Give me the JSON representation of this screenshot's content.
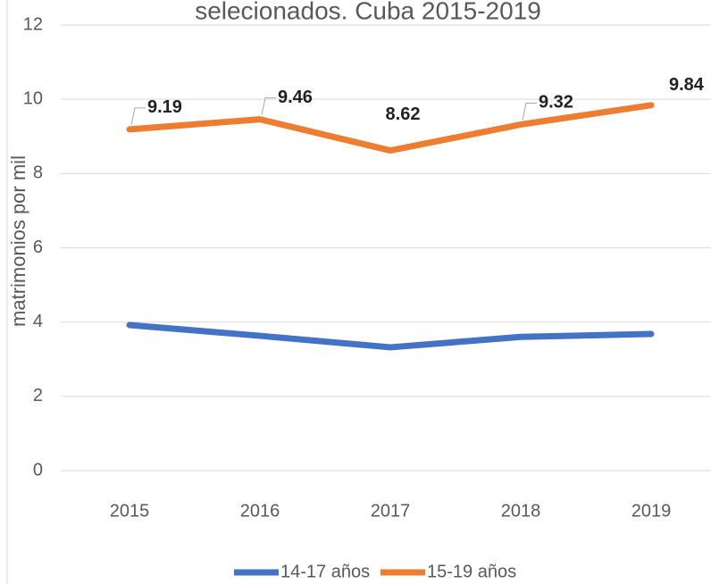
{
  "chart_data": {
    "type": "line",
    "title": "selecionados. Cuba 2015-2019",
    "y_label": "matrimonios por mil",
    "categories": [
      "2015",
      "2016",
      "2017",
      "2018",
      "2019"
    ],
    "series": [
      {
        "name": "14-17 años",
        "color": "#4472c4",
        "values": [
          3.92,
          3.63,
          3.32,
          3.6,
          3.68
        ]
      },
      {
        "name": "15-19 años",
        "color": "#ed7d31",
        "values": [
          9.19,
          9.46,
          8.62,
          9.32,
          9.84
        ],
        "data_labels": true
      }
    ],
    "ylim": [
      0,
      12
    ],
    "yticks": [
      0,
      2,
      4,
      6,
      8,
      10,
      12
    ],
    "grid": true,
    "legend": "bottom"
  }
}
